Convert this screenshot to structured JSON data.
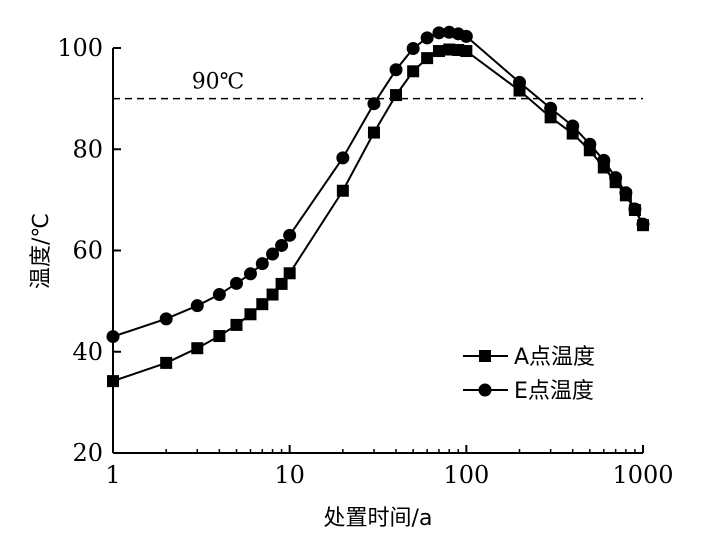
{
  "chart_data": {
    "type": "line",
    "xscale": "log",
    "xlabel": "处置时间/a",
    "ylabel": "温度/℃",
    "xlim": [
      1,
      1000
    ],
    "ylim": [
      20,
      100
    ],
    "xticks": [
      1,
      10,
      100,
      1000
    ],
    "xtick_labels": [
      "1",
      "10",
      "100",
      "1000"
    ],
    "yticks": [
      20,
      40,
      60,
      80,
      100
    ],
    "ytick_labels": [
      "20",
      "40",
      "60",
      "80",
      "100"
    ],
    "reference_line": {
      "y": 90,
      "label": "90℃",
      "style": "dashed"
    },
    "legend_position": "lower-right",
    "series": [
      {
        "name": "A点温度",
        "marker": "square",
        "x": [
          1,
          2,
          3,
          4,
          5,
          6,
          7,
          8,
          9,
          10,
          20,
          30,
          40,
          50,
          60,
          70,
          80,
          90,
          100,
          200,
          300,
          400,
          500,
          600,
          700,
          800,
          900,
          1000
        ],
        "y": [
          34.2,
          37.8,
          40.7,
          43.1,
          45.3,
          47.4,
          49.4,
          51.3,
          53.4,
          55.5,
          71.8,
          83.3,
          90.7,
          95.4,
          98.0,
          99.4,
          99.7,
          99.6,
          99.4,
          91.6,
          86.3,
          83.1,
          79.8,
          76.4,
          73.5,
          70.9,
          68.0,
          65.0
        ]
      },
      {
        "name": "E点温度",
        "marker": "circle",
        "x": [
          1,
          2,
          3,
          4,
          5,
          6,
          7,
          8,
          9,
          10,
          20,
          30,
          40,
          50,
          60,
          70,
          80,
          90,
          100,
          200,
          300,
          400,
          500,
          600,
          700,
          800,
          900,
          1000
        ],
        "y": [
          43.0,
          46.5,
          49.1,
          51.3,
          53.5,
          55.4,
          57.4,
          59.3,
          61.0,
          63.0,
          78.3,
          89.0,
          95.7,
          99.9,
          102.0,
          103.0,
          103.1,
          102.8,
          102.3,
          93.2,
          88.1,
          84.6,
          81.0,
          77.8,
          74.4,
          71.4,
          68.2,
          65.2
        ]
      }
    ]
  }
}
